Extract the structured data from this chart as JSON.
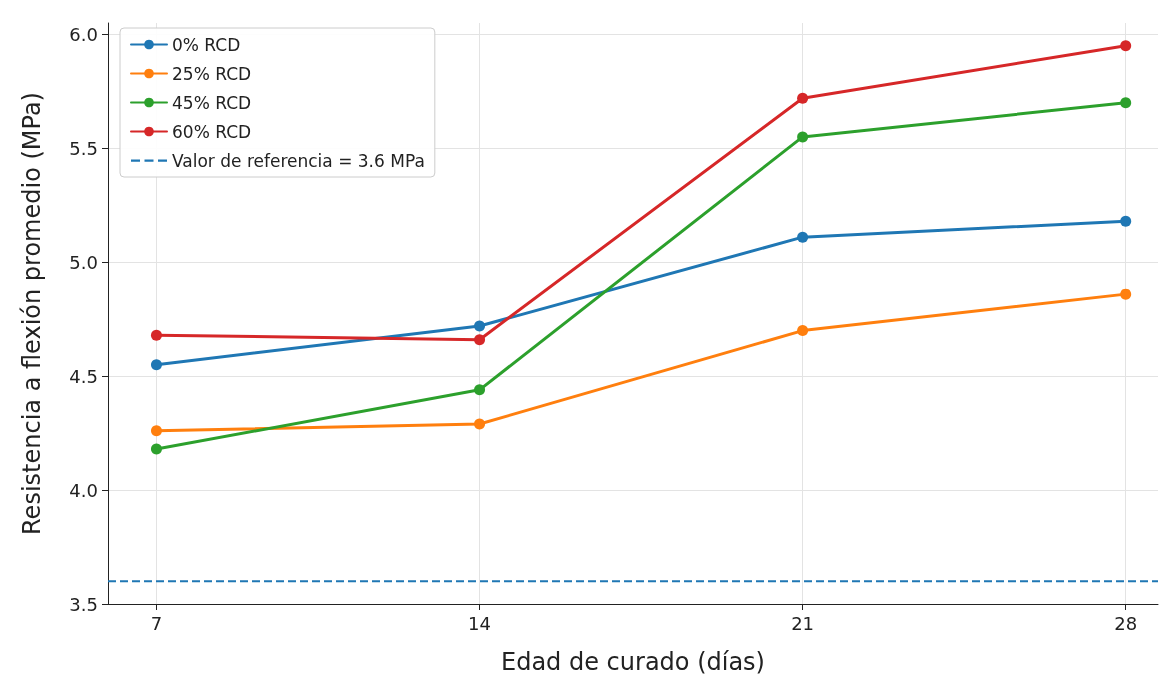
{
  "chart_data": {
    "type": "line",
    "xlabel": "Edad de curado (días)",
    "ylabel": "Resistencia a flexión promedio (MPa)",
    "x": [
      7,
      14,
      21,
      28
    ],
    "series": [
      {
        "name": "0% RCD",
        "color": "#1f77b4",
        "values": [
          4.55,
          4.72,
          5.11,
          5.18
        ]
      },
      {
        "name": "25% RCD",
        "color": "#ff7f0e",
        "values": [
          4.26,
          4.29,
          4.7,
          4.86
        ]
      },
      {
        "name": "45% RCD",
        "color": "#2ca02c",
        "values": [
          4.18,
          4.44,
          5.55,
          5.7
        ]
      },
      {
        "name": "60% RCD",
        "color": "#d62728",
        "values": [
          4.68,
          4.66,
          5.72,
          5.95
        ]
      }
    ],
    "xlim": [
      5.95,
      28.7
    ],
    "xticks": [
      7,
      14,
      21,
      28
    ],
    "ylim": [
      3.5,
      6.05
    ],
    "yticks": [
      3.5,
      {
        "value": 4,
        "label": "4.0"
      },
      4.5,
      {
        "value": 5,
        "label": "5.0"
      },
      5.5,
      {
        "value": 6,
        "label": "6.0"
      }
    ],
    "ref_lines": [
      {
        "axis": "y",
        "value": 3.6,
        "label": "Valor de referencia = 3.6 MPa",
        "color": "#1f77b4",
        "line_style": "dashed"
      }
    ],
    "grid": true,
    "legend": "top left",
    "marker": "circle",
    "line_style": "solid"
  }
}
